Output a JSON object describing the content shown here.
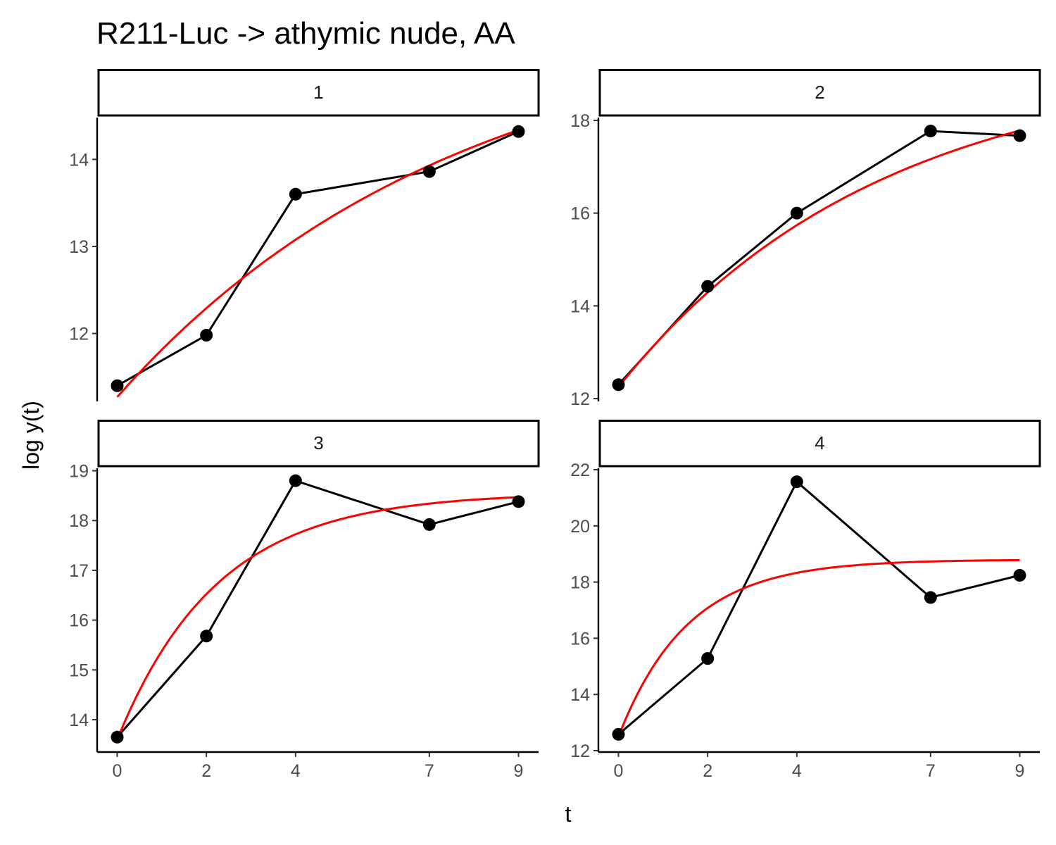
{
  "chart_data": {
    "type": "line",
    "title": "R211-Luc -> athymic nude, AA",
    "xlabel": "t",
    "ylabel": "log y(t)",
    "x_ticks": [
      0,
      2,
      4,
      7,
      9
    ],
    "xlim": [
      -0.45,
      9.45
    ],
    "grid": false,
    "legend": "none",
    "colors": {
      "observed": "#000000",
      "fit": "#ff0000",
      "strip_border": "#000000"
    },
    "panels": [
      {
        "label": "1",
        "ylim": [
          11.22,
          14.48
        ],
        "y_ticks": [
          12,
          13,
          14
        ],
        "x": [
          0,
          2,
          4,
          7,
          9
        ],
        "observed": [
          11.4,
          11.98,
          13.6,
          13.86,
          14.32
        ],
        "fit": {
          "plateau": 15.7,
          "start": 11.27,
          "rate": 0.131,
          "t_range": [
            0,
            9
          ]
        }
      },
      {
        "label": "2",
        "ylim": [
          11.94,
          18.06
        ],
        "y_ticks": [
          12,
          14,
          16,
          18
        ],
        "x": [
          0,
          2,
          4,
          7,
          9
        ],
        "observed": [
          12.3,
          14.42,
          16.0,
          17.77,
          17.67
        ],
        "fit": {
          "plateau": 19.29,
          "start": 12.25,
          "rate": 0.1711,
          "t_range": [
            0,
            9
          ]
        }
      },
      {
        "label": "3",
        "ylim": [
          13.35,
          19.05
        ],
        "y_ticks": [
          14,
          15,
          16,
          17,
          18,
          19
        ],
        "x": [
          0,
          2,
          4,
          7,
          9
        ],
        "observed": [
          13.65,
          15.68,
          18.8,
          17.92,
          18.38
        ],
        "fit": {
          "plateau": 18.56,
          "start": 13.6,
          "rate": 0.445,
          "t_range": [
            0,
            9
          ]
        }
      },
      {
        "label": "4",
        "ylim": [
          11.95,
          22.05
        ],
        "y_ticks": [
          12,
          14,
          16,
          18,
          20,
          22
        ],
        "x": [
          0,
          2,
          4,
          7,
          9
        ],
        "observed": [
          12.58,
          15.28,
          21.57,
          17.45,
          18.24
        ],
        "fit": {
          "plateau": 18.8,
          "start": 12.5,
          "rate": 0.648,
          "t_range": [
            0,
            9
          ]
        }
      }
    ]
  }
}
